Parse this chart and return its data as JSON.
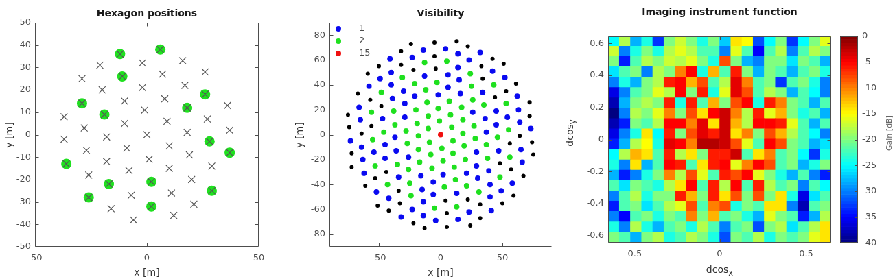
{
  "chart_data": [
    {
      "type": "scatter",
      "title": "Hexagon positions",
      "xlabel": "x [m]",
      "ylabel": "y [m]",
      "xlim": [
        -50,
        50
      ],
      "xticks": [
        -50,
        0,
        50
      ],
      "ylim": [
        -50,
        50
      ],
      "yticks": [
        -50,
        -40,
        -30,
        -20,
        -10,
        0,
        10,
        20,
        30,
        40,
        50
      ],
      "series": [
        {
          "color": "#1fe01f",
          "marker": "circle",
          "x": [
            -12,
            6,
            -11,
            26,
            -29,
            18,
            -19,
            28,
            37,
            -36,
            2,
            -17,
            29,
            -26,
            2
          ],
          "values": [
            36,
            38,
            26,
            18,
            14,
            12,
            9,
            -3,
            -8,
            -13,
            -21,
            -22,
            -25,
            -28,
            -32
          ]
        },
        {
          "color": "#555555",
          "marker": "cross",
          "x": [
            -29,
            -21,
            -12,
            -37,
            -29,
            -20,
            -11,
            -2,
            6,
            -37,
            -28,
            -19,
            -10,
            -2,
            7,
            16,
            -36,
            -27,
            -18,
            -10,
            -1,
            8,
            17,
            26,
            -26,
            -18,
            -9,
            0,
            9,
            18,
            26,
            -26,
            -17,
            -8,
            1,
            10,
            18,
            27,
            36,
            -16,
            -7,
            2,
            10,
            19,
            28,
            37,
            -6,
            2,
            11,
            20,
            29,
            37,
            12,
            21,
            29
          ],
          "values": [
            25,
            31,
            36,
            8,
            14,
            20,
            26,
            32,
            38,
            -2,
            3,
            9,
            15,
            21,
            27,
            33,
            -13,
            -7,
            -1,
            5,
            11,
            16,
            22,
            28,
            -18,
            -12,
            -6,
            0,
            6,
            12,
            18,
            -28,
            -22,
            -16,
            -11,
            -5,
            1,
            7,
            13,
            -33,
            -27,
            -21,
            -15,
            -9,
            -3,
            2,
            -38,
            -32,
            -26,
            -20,
            -14,
            -8,
            -36,
            -31,
            -25
          ]
        }
      ]
    },
    {
      "type": "scatter",
      "title": "Visibility",
      "xlabel": "x [m]",
      "ylabel": "y [m]",
      "xlim": [
        -90,
        90
      ],
      "xticks": [
        -50,
        0,
        50
      ],
      "ylim": [
        -90,
        90
      ],
      "yticks": [
        -80,
        -60,
        -40,
        -20,
        0,
        20,
        40,
        60,
        80
      ],
      "legend": "top left",
      "marker": "circle",
      "series": [
        {
          "name": "1",
          "color": "#0a0af0",
          "x": [
            26,
            -62,
            52,
            34,
            -45,
            -36,
            -45,
            42,
            -37,
            16,
            -54,
            -63,
            -29,
            15,
            -2,
            6,
            -64,
            -29,
            23,
            32,
            6,
            14,
            -47,
            -21,
            -73,
            14,
            -39,
            -13,
            -30,
            -65,
            -40,
            4,
            -66,
            -49,
            -14,
            -23,
            -40,
            -58,
            -41,
            -26,
            62,
            -52,
            -34,
            45,
            36,
            45,
            -42,
            37,
            -16,
            54,
            63,
            29,
            -15,
            2,
            -6,
            64,
            29,
            -23,
            -32,
            -6,
            -14,
            47,
            21,
            73,
            -14,
            39,
            13,
            30,
            65,
            40,
            -4,
            66,
            49,
            14,
            23,
            40,
            58,
            41
          ],
          "values": [
            18,
            -31,
            46,
            34,
            -19,
            -13,
            -8,
            51,
            -2,
            33,
            -14,
            -20,
            14,
            44,
            32,
            38,
            -10,
            25,
            60,
            66,
            48,
            54,
            13,
            31,
            -5,
            65,
            29,
            47,
            35,
            12,
            40,
            69,
            22,
            45,
            68,
            62,
            50,
            39,
            61,
            -18,
            31,
            -46,
            -34,
            19,
            13,
            8,
            -51,
            2,
            -33,
            14,
            20,
            -14,
            -44,
            -32,
            -38,
            10,
            -25,
            -60,
            -66,
            -48,
            -54,
            -13,
            -31,
            5,
            -65,
            -29,
            -47,
            -35,
            -12,
            -40,
            -69,
            -22,
            -45,
            -68,
            -62,
            -50,
            -39,
            -61
          ]
        },
        {
          "name": "2",
          "color": "#1fe01f",
          "x": [
            18,
            35,
            9,
            -18,
            -1,
            17,
            26,
            8,
            43,
            -10,
            -53,
            -27,
            7,
            25,
            -2,
            -10,
            -19,
            -28,
            24,
            -20,
            -11,
            -37,
            -55,
            -46,
            -38,
            -3,
            -12,
            5,
            -21,
            -56,
            -13,
            -31,
            -48,
            -18,
            -35,
            -9,
            18,
            1,
            -17,
            -26,
            -8,
            -43,
            10,
            53,
            27,
            -7,
            -25,
            2,
            10,
            19,
            28,
            -24,
            20,
            11,
            37,
            55,
            46,
            38,
            3,
            12,
            -5,
            21,
            56,
            13,
            31,
            48
          ],
          "values": [
            12,
            24,
            6,
            -1,
            11,
            22,
            28,
            16,
            40,
            5,
            -25,
            -7,
            27,
            39,
            21,
            15,
            9,
            3,
            49,
            20,
            26,
            8,
            -4,
            2,
            19,
            42,
            36,
            59,
            41,
            18,
            58,
            46,
            34,
            -12,
            -24,
            -6,
            1,
            -11,
            -22,
            -28,
            -16,
            -40,
            -5,
            25,
            7,
            -27,
            -39,
            -21,
            -15,
            -9,
            -3,
            -49,
            -20,
            -26,
            -8,
            4,
            -2,
            -19,
            -42,
            -36,
            -59,
            -41,
            -18,
            -58,
            -46,
            -34
          ]
        },
        {
          "name": "15",
          "color": "#f01010",
          "x": [
            0
          ],
          "values": [
            0
          ]
        },
        {
          "color": "#000000",
          "x": [
            44,
            53,
            61,
            -72,
            34,
            51,
            -72,
            33,
            42,
            -64,
            -56,
            -74,
            -48,
            -4,
            22,
            -75,
            -57,
            -22,
            -5,
            13,
            -67,
            -32,
            -5,
            -59,
            -50,
            -32,
            -24,
            -44,
            -53,
            -61,
            72,
            -34,
            -51,
            72,
            -33,
            -42,
            64,
            56,
            74,
            48,
            4,
            -22,
            75,
            57,
            22,
            5,
            -13,
            67,
            32,
            5,
            59,
            50,
            32,
            24
          ],
          "values": [
            30,
            35,
            41,
            -26,
            45,
            57,
            -15,
            55,
            61,
            1,
            7,
            6,
            23,
            53,
            71,
            16,
            28,
            52,
            63,
            75,
            33,
            56,
            74,
            49,
            55,
            67,
            73,
            -30,
            -35,
            -41,
            26,
            -45,
            -57,
            15,
            -55,
            -61,
            -1,
            -7,
            -6,
            -23,
            -53,
            -71,
            -16,
            -28,
            -52,
            -63,
            -75,
            -33,
            -56,
            -74,
            -49,
            -55,
            -67,
            -73
          ]
        }
      ]
    },
    {
      "type": "heatmap",
      "title": "Imaging instrument function",
      "xlabel": "dcos$_{x}$",
      "ylabel": "dcos$_{y}$",
      "clabel": "Gain [dB]",
      "xlim": [
        -0.645,
        0.645
      ],
      "xticks": [
        -0.5,
        0,
        0.5
      ],
      "ylim": [
        -0.645,
        0.645
      ],
      "yticks": [
        -0.6,
        -0.4,
        -0.2,
        0,
        0.2,
        0.4,
        0.6
      ],
      "clim": [
        -40,
        0
      ],
      "cticks": [
        -40,
        -35,
        -30,
        -25,
        -20,
        -15,
        -10,
        -5,
        0
      ],
      "cells": [
        [
          -25,
          -18,
          -28,
          -24,
          -33,
          -20,
          -17,
          -20,
          -24,
          -20,
          -27,
          -14,
          -15,
          -32,
          -25,
          -20,
          -33,
          -25,
          -20,
          -16
        ],
        [
          -17,
          -30,
          -24,
          -20,
          -24,
          -18,
          -16,
          -18,
          -22,
          -22,
          -30,
          -16,
          -22,
          -35,
          -22,
          -18,
          -30,
          -22,
          -18,
          -20
        ],
        [
          -20,
          -34,
          -22,
          -18,
          -20,
          -17,
          -18,
          -16,
          -20,
          -24,
          -8,
          -20,
          -28,
          -30,
          -20,
          -20,
          -26,
          -20,
          -22,
          -28
        ],
        [
          -26,
          -22,
          -20,
          -30,
          -18,
          -20,
          -10,
          -5,
          -24,
          -12,
          -22,
          -6,
          -20,
          -28,
          -20,
          -22,
          -28,
          -22,
          -20,
          -24
        ],
        [
          -30,
          -24,
          -28,
          -20,
          -18,
          -6,
          -5,
          -12,
          -8,
          -22,
          -18,
          -4,
          -10,
          -22,
          -20,
          -33,
          -22,
          -20,
          -24,
          -30
        ],
        [
          -36,
          -30,
          -22,
          -20,
          -16,
          -18,
          -5,
          -20,
          -6,
          -24,
          -16,
          -4,
          -8,
          -22,
          -18,
          -20,
          -28,
          -22,
          -25,
          -30
        ],
        [
          -38,
          -28,
          -20,
          -18,
          -20,
          -6,
          -24,
          -6,
          -22,
          -12,
          -20,
          -8,
          -5,
          -24,
          -6,
          -10,
          -20,
          -22,
          -28,
          -22
        ],
        [
          -40,
          -30,
          -18,
          -20,
          -16,
          -10,
          -20,
          -8,
          -14,
          -5,
          -3,
          -10,
          -18,
          -6,
          -16,
          -12,
          -20,
          -24,
          -22,
          -28
        ],
        [
          -38,
          -34,
          -20,
          -22,
          -18,
          -5,
          -5,
          -10,
          -4,
          -14,
          -3,
          -12,
          -18,
          -5,
          -5,
          -6,
          -16,
          -22,
          -28,
          -22
        ],
        [
          -36,
          -30,
          -24,
          -14,
          -25,
          -6,
          -20,
          -8,
          -4,
          -6,
          -3,
          -14,
          -10,
          -20,
          -8,
          -12,
          -18,
          -22,
          -25,
          -30
        ],
        [
          -34,
          -28,
          -18,
          -15,
          -24,
          -4,
          -5,
          -10,
          -2,
          -2,
          -3,
          -8,
          -16,
          -22,
          -5,
          -8,
          -20,
          -22,
          -28,
          -26
        ],
        [
          -25,
          -18,
          -12,
          -14,
          -22,
          -6,
          -18,
          -14,
          -20,
          -6,
          -6,
          -3,
          -22,
          -14,
          -10,
          -22,
          -20,
          -25,
          -33,
          -24
        ],
        [
          -24,
          -30,
          -14,
          -28,
          -22,
          -5,
          -6,
          -22,
          -14,
          -6,
          -5,
          -16,
          -10,
          -5,
          -8,
          -22,
          -20,
          -28,
          -24,
          -20
        ],
        [
          -28,
          -34,
          -30,
          -24,
          -20,
          -10,
          -18,
          -8,
          -16,
          -22,
          -6,
          -8,
          -5,
          -16,
          -20,
          -24,
          -28,
          -22,
          -30,
          -34
        ],
        [
          -22,
          -26,
          -20,
          -22,
          -24,
          -18,
          -14,
          -5,
          -22,
          -6,
          -18,
          -5,
          -22,
          -6,
          -18,
          -22,
          -20,
          -30,
          -22,
          -25
        ],
        [
          -30,
          -22,
          -18,
          -24,
          -20,
          -20,
          -6,
          -12,
          -20,
          -6,
          -14,
          -8,
          -20,
          -8,
          -20,
          -14,
          -24,
          -36,
          -26,
          -22
        ],
        [
          -34,
          -22,
          -20,
          -26,
          -22,
          -18,
          -16,
          -8,
          -22,
          -10,
          -8,
          -24,
          -20,
          -22,
          -14,
          -14,
          -30,
          -38,
          -22,
          -20
        ],
        [
          -30,
          -35,
          -22,
          -20,
          -24,
          -20,
          -22,
          -10,
          -20,
          -12,
          -22,
          -20,
          -24,
          -28,
          -16,
          -20,
          -22,
          -34,
          -28,
          -18
        ],
        [
          -24,
          -30,
          -18,
          -24,
          -28,
          -22,
          -20,
          -24,
          -18,
          -22,
          -30,
          -22,
          -20,
          -32,
          -20,
          -18,
          -26,
          -22,
          -18,
          -14
        ],
        [
          -20,
          -22,
          -28,
          -20,
          -18,
          -24,
          -22,
          -18,
          -20,
          -24,
          -32,
          -20,
          -22,
          -18,
          -24,
          -20,
          -22,
          -20,
          -16,
          -14
        ]
      ]
    }
  ]
}
